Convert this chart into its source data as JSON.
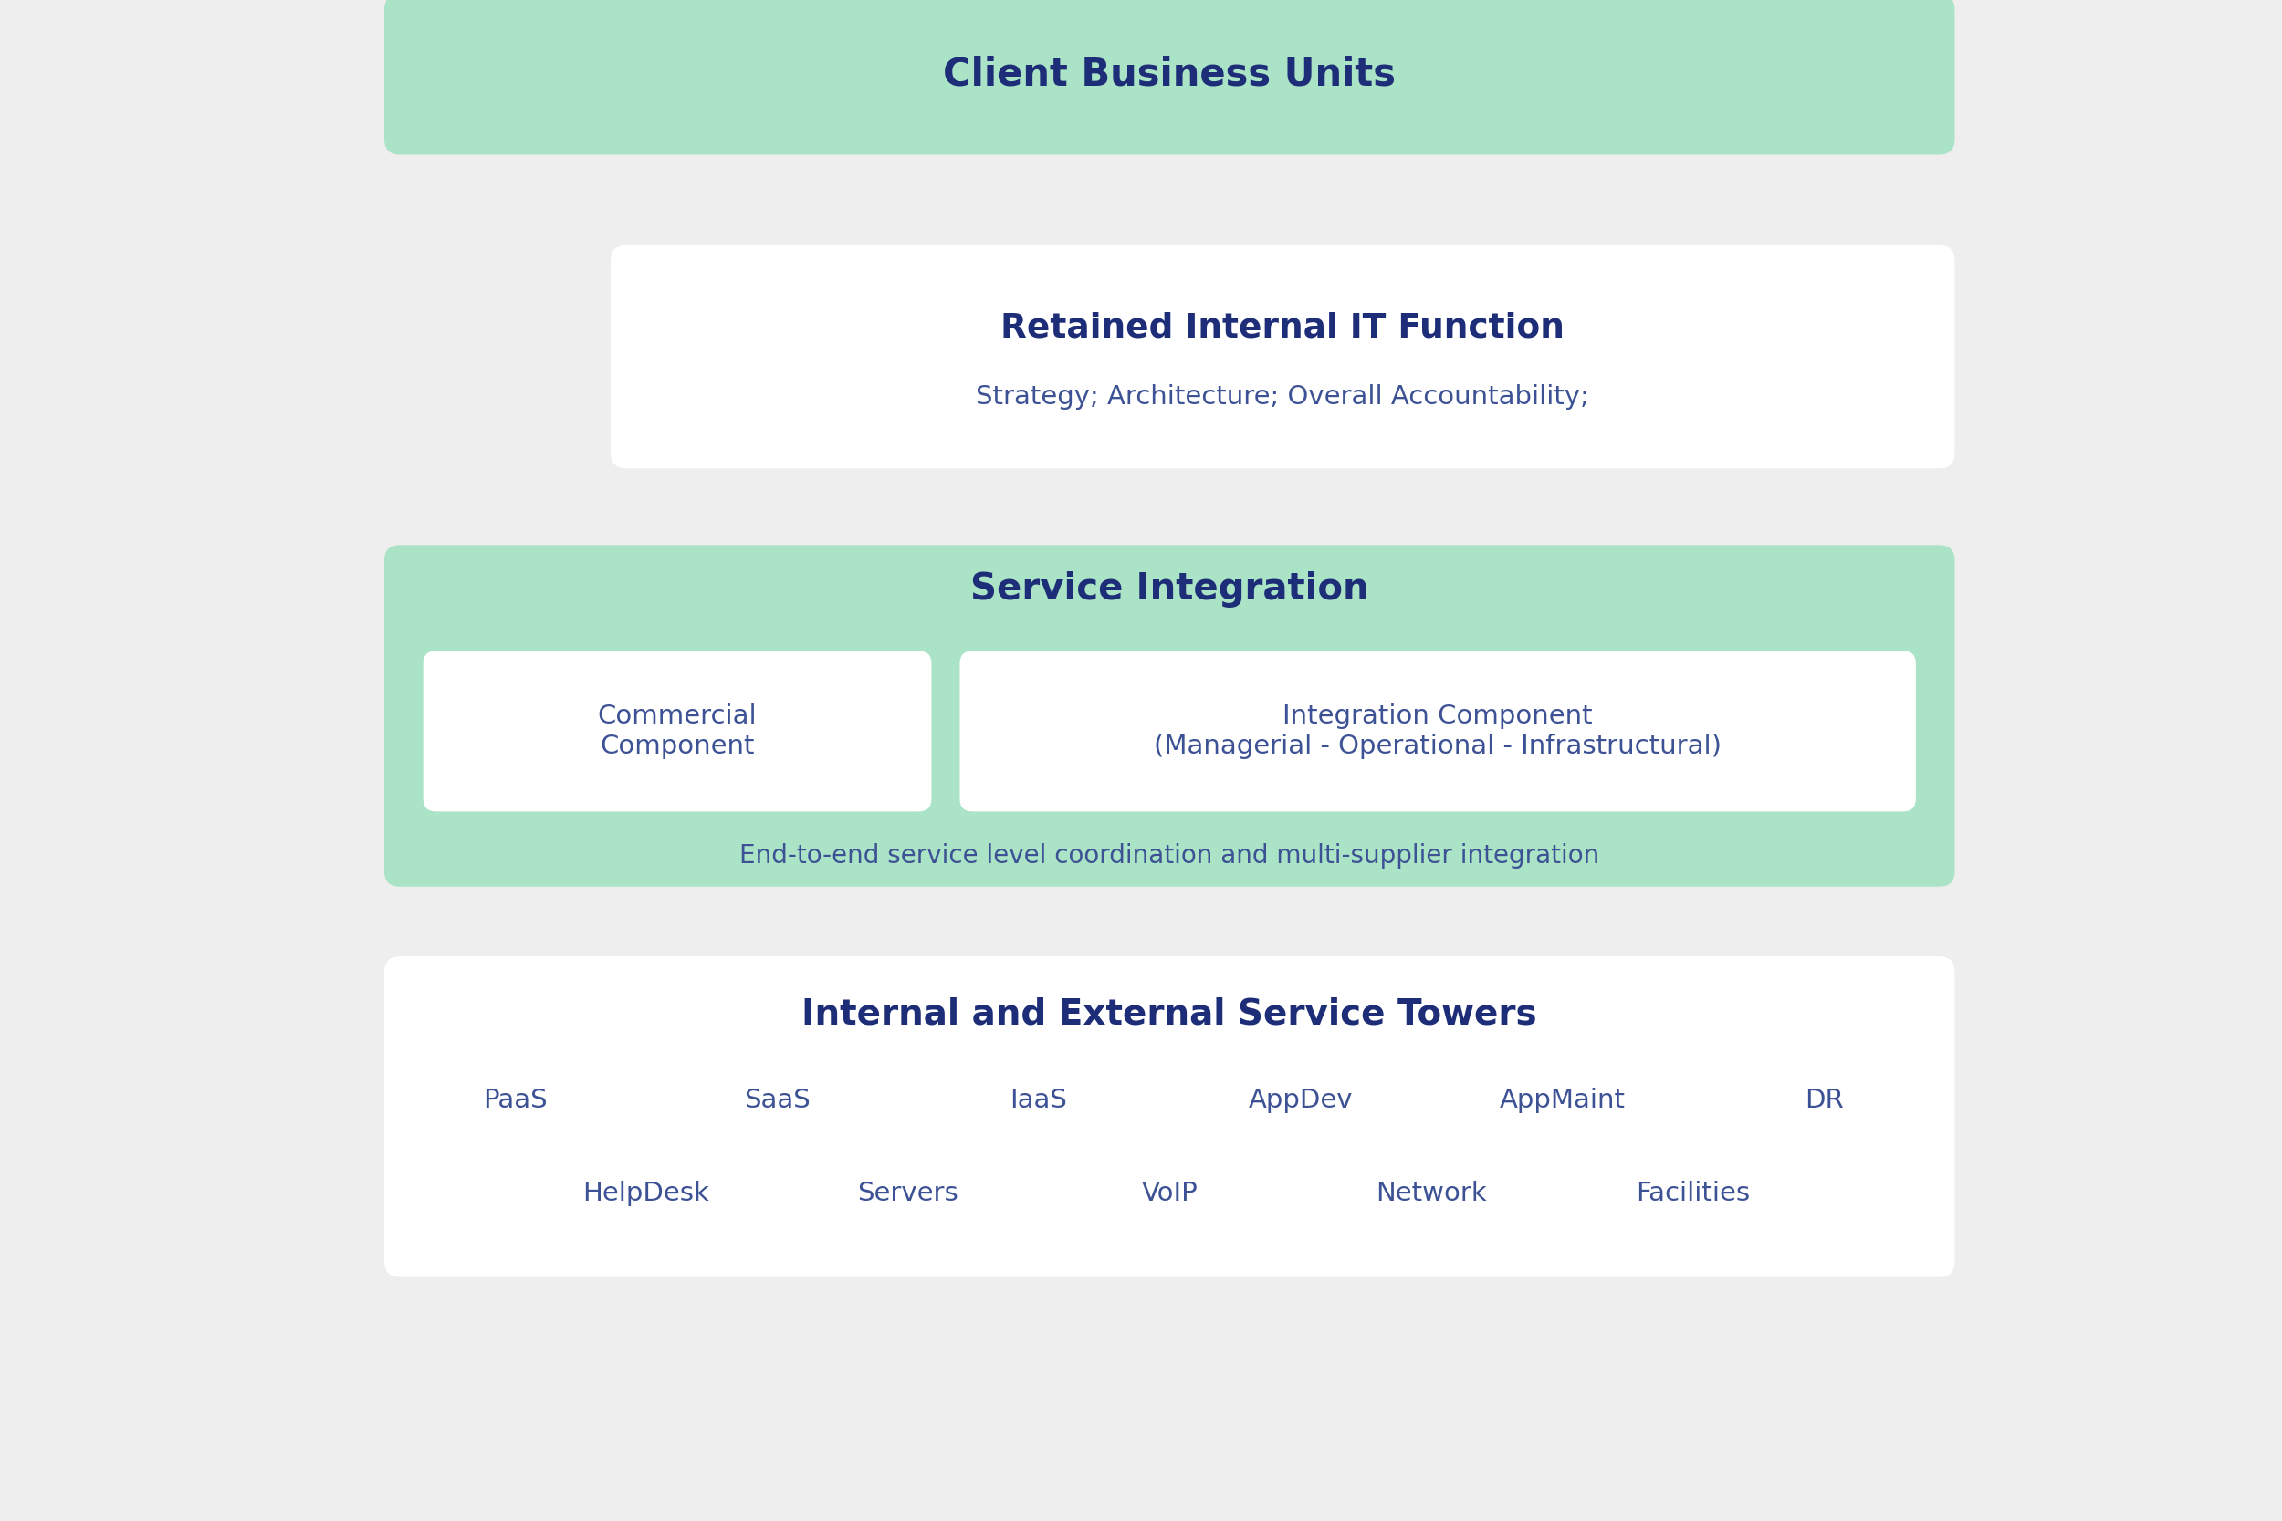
{
  "bg_color": "#eeeeee",
  "green_color": "#aae3c6",
  "white_color": "#ffffff",
  "dark_navy": "#1e2d78",
  "medium_navy": "#3d5295",
  "section1": {
    "title": "Client Business Units"
  },
  "section2": {
    "title": "Retained Internal IT Function",
    "subtitle": "Strategy; Architecture; Overall Accountability;"
  },
  "section3": {
    "title": "Service Integration",
    "box1_title": "Commercial\nComponent",
    "box2_title": "Integration Component\n(Managerial - Operational - Infrastructural)",
    "footer": "End-to-end service level coordination and multi-supplier integration"
  },
  "section4": {
    "title": "Internal and External Service Towers",
    "row1": [
      "PaaS",
      "SaaS",
      "IaaS",
      "AppDev",
      "AppMaint",
      "DR"
    ],
    "row2": [
      "HelpDesk",
      "Servers",
      "VoIP",
      "Network",
      "Facilities"
    ]
  }
}
